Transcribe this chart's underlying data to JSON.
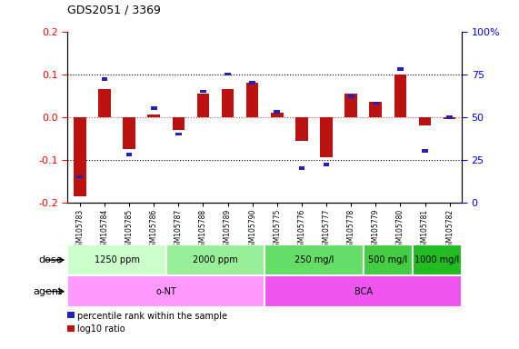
{
  "title": "GDS2051 / 3369",
  "samples": [
    "GSM105783",
    "GSM105784",
    "GSM105785",
    "GSM105786",
    "GSM105787",
    "GSM105788",
    "GSM105789",
    "GSM105790",
    "GSM105775",
    "GSM105776",
    "GSM105777",
    "GSM105778",
    "GSM105779",
    "GSM105780",
    "GSM105781",
    "GSM105782"
  ],
  "log10_ratio": [
    -0.185,
    0.065,
    -0.075,
    0.005,
    -0.03,
    0.055,
    0.065,
    0.08,
    0.01,
    -0.055,
    -0.095,
    0.055,
    0.035,
    0.1,
    -0.02,
    -0.005
  ],
  "percentile": [
    15,
    72,
    28,
    55,
    40,
    65,
    75,
    70,
    53,
    20,
    22,
    62,
    58,
    78,
    30,
    50
  ],
  "bar_color": "#bb1111",
  "dot_color": "#2222bb",
  "ylim": [
    -0.2,
    0.2
  ],
  "yticks_left": [
    -0.2,
    -0.1,
    0.0,
    0.1,
    0.2
  ],
  "yticks_right": [
    0,
    25,
    50,
    75,
    100
  ],
  "dose_groups": [
    {
      "label": "1250 ppm",
      "start": 0,
      "end": 4,
      "color": "#ccffcc"
    },
    {
      "label": "2000 ppm",
      "start": 4,
      "end": 8,
      "color": "#99ee99"
    },
    {
      "label": "250 mg/l",
      "start": 8,
      "end": 12,
      "color": "#66dd66"
    },
    {
      "label": "500 mg/l",
      "start": 12,
      "end": 14,
      "color": "#44cc44"
    },
    {
      "label": "1000 mg/l",
      "start": 14,
      "end": 16,
      "color": "#22bb22"
    }
  ],
  "agent_groups": [
    {
      "label": "o-NT",
      "start": 0,
      "end": 8,
      "color": "#ff99ff"
    },
    {
      "label": "BCA",
      "start": 8,
      "end": 16,
      "color": "#ee55ee"
    }
  ],
  "legend_items": [
    {
      "color": "#bb1111",
      "label": "log10 ratio"
    },
    {
      "color": "#2222bb",
      "label": "percentile rank within the sample"
    }
  ]
}
